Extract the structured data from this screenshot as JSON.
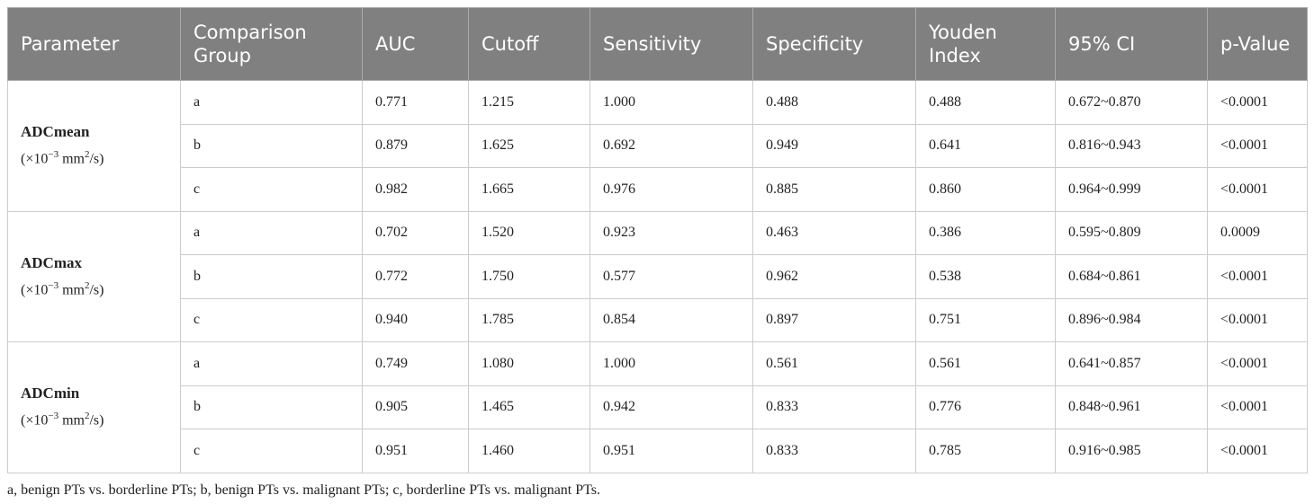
{
  "table": {
    "header": [
      "Parameter",
      "Comparison Group",
      "AUC",
      "Cutoff",
      "Sensitivity",
      "Specificity",
      "Youden Index",
      "95% CI",
      "p-Value"
    ],
    "groups": [
      {
        "name": "ADCmean",
        "unit": {
          "base": "(×10",
          "exp": "−3",
          "mid": " mm",
          "sup": "2",
          "end": "/s)"
        },
        "rows": [
          [
            "a",
            "0.771",
            "1.215",
            "1.000",
            "0.488",
            "0.488",
            "0.672~0.870",
            "<0.0001"
          ],
          [
            "b",
            "0.879",
            "1.625",
            "0.692",
            "0.949",
            "0.641",
            "0.816~0.943",
            "<0.0001"
          ],
          [
            "c",
            "0.982",
            "1.665",
            "0.976",
            "0.885",
            "0.860",
            "0.964~0.999",
            "<0.0001"
          ]
        ]
      },
      {
        "name": "ADCmax",
        "unit": {
          "base": "(×10",
          "exp": "−3",
          "mid": " mm",
          "sup": "2",
          "end": "/s)"
        },
        "rows": [
          [
            "a",
            "0.702",
            "1.520",
            "0.923",
            "0.463",
            "0.386",
            "0.595~0.809",
            "0.0009"
          ],
          [
            "b",
            "0.772",
            "1.750",
            "0.577",
            "0.962",
            "0.538",
            "0.684~0.861",
            "<0.0001"
          ],
          [
            "c",
            "0.940",
            "1.785",
            "0.854",
            "0.897",
            "0.751",
            "0.896~0.984",
            "<0.0001"
          ]
        ]
      },
      {
        "name": "ADCmin",
        "unit": {
          "base": "(×10",
          "exp": "−3",
          "mid": " mm",
          "sup": "2",
          "end": "/s)"
        },
        "rows": [
          [
            "a",
            "0.749",
            "1.080",
            "1.000",
            "0.561",
            "0.561",
            "0.641~0.857",
            "<0.0001"
          ],
          [
            "b",
            "0.905",
            "1.465",
            "0.942",
            "0.833",
            "0.776",
            "0.848~0.961",
            "<0.0001"
          ],
          [
            "c",
            "0.951",
            "1.460",
            "0.951",
            "0.833",
            "0.785",
            "0.916~0.985",
            "<0.0001"
          ]
        ]
      }
    ],
    "footnote": "a, benign PTs vs. borderline PTs; b, benign PTs vs. malignant PTs; c, borderline PTs vs. malignant PTs."
  }
}
